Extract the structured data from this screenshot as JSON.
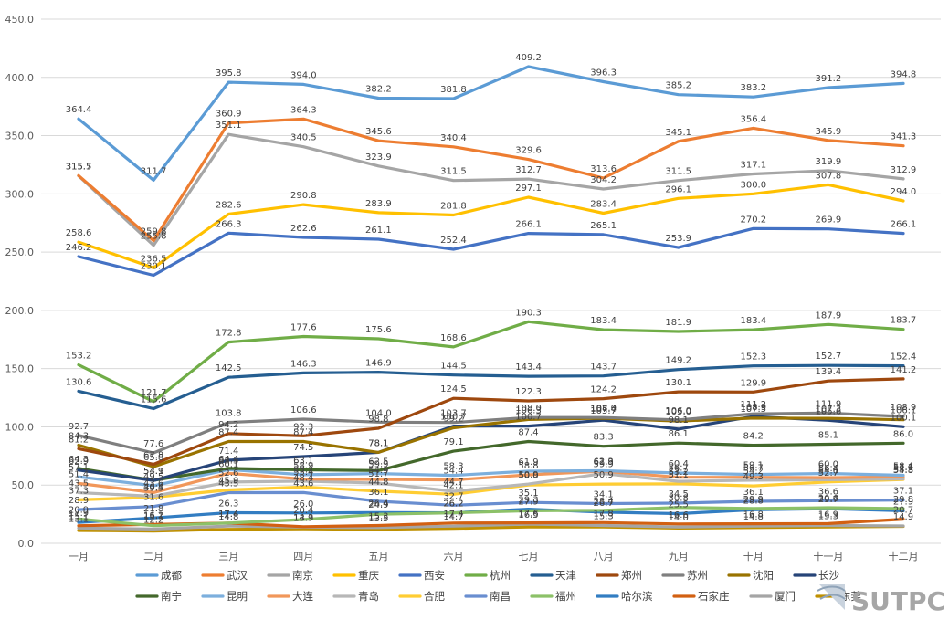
{
  "chart_data": {
    "type": "line",
    "categories": [
      "一月",
      "二月",
      "三月",
      "四月",
      "五月",
      "六月",
      "七月",
      "八月",
      "九月",
      "十月",
      "十一月",
      "十二月"
    ],
    "ylim": [
      0,
      450
    ],
    "yticks": [
      "0.0",
      "50.0",
      "100.0",
      "150.0",
      "200.0",
      "250.0",
      "300.0",
      "350.0",
      "400.0",
      "450.0"
    ],
    "grid": true,
    "legend_position": "bottom",
    "series": [
      {
        "name": "成都",
        "color": "#5b9bd5",
        "labeled": true,
        "values": [
          364.4,
          311.7,
          395.8,
          394.0,
          382.2,
          381.8,
          409.2,
          396.3,
          385.2,
          383.2,
          391.2,
          394.8
        ]
      },
      {
        "name": "武汉",
        "color": "#ed7d31",
        "labeled": true,
        "values": [
          315.7,
          259.8,
          360.9,
          364.3,
          345.6,
          340.4,
          329.6,
          313.6,
          345.1,
          356.4,
          345.9,
          341.3
        ]
      },
      {
        "name": "南京",
        "color": "#a5a5a5",
        "labeled": true,
        "values": [
          315.5,
          255.8,
          351.1,
          340.5,
          323.9,
          311.5,
          312.7,
          304.2,
          311.5,
          317.1,
          319.9,
          312.9
        ]
      },
      {
        "name": "重庆",
        "color": "#ffc000",
        "labeled": true,
        "values": [
          258.6,
          236.5,
          282.6,
          290.8,
          283.9,
          281.8,
          297.1,
          283.4,
          296.1,
          300.0,
          307.8,
          294.0
        ]
      },
      {
        "name": "西安",
        "color": "#4472c4",
        "labeled": true,
        "values": [
          246.2,
          230.1,
          266.3,
          262.6,
          261.1,
          252.4,
          266.1,
          265.1,
          253.9,
          270.2,
          269.9,
          266.1
        ]
      },
      {
        "name": "杭州",
        "color": "#70ad47",
        "labeled": true,
        "values": [
          153.2,
          121.7,
          172.8,
          177.6,
          175.6,
          168.6,
          190.3,
          183.4,
          181.9,
          183.4,
          187.9,
          183.7
        ]
      },
      {
        "name": "天津",
        "color": "#255e91",
        "labeled": true,
        "values": [
          130.6,
          115.6,
          142.5,
          146.3,
          146.9,
          144.5,
          143.4,
          143.7,
          149.2,
          152.3,
          152.7,
          152.4
        ]
      },
      {
        "name": "郑州",
        "color": "#9e480e",
        "labeled": true,
        "values": [
          81.2,
          67.8,
          94.2,
          92.3,
          98.8,
          124.5,
          122.3,
          124.2,
          130.1,
          129.9,
          139.4,
          141.2
        ]
      },
      {
        "name": "苏州",
        "color": "#7f7f7f",
        "labeled": true,
        "values": [
          92.7,
          77.6,
          103.8,
          106.6,
          104.0,
          103.7,
          108.0,
          108.0,
          106.0,
          111.2,
          111.9,
          108.9
        ]
      },
      {
        "name": "沈阳",
        "color": "#997300",
        "labeled": true,
        "values": [
          84.3,
          65.8,
          87.4,
          87.4,
          78.1,
          99.2,
          106.3,
          107.4,
          105.0,
          107.5,
          107.3,
          106.1
        ]
      },
      {
        "name": "长沙",
        "color": "#264478",
        "labeled": true,
        "values": [
          62.9,
          53.9,
          71.4,
          74.5,
          78.1,
          100.7,
          100.7,
          105.7,
          98.1,
          108.9,
          105.6,
          100.1
        ]
      },
      {
        "name": "南宁",
        "color": "#43682b",
        "labeled": true,
        "values": [
          64.3,
          54.1,
          64.4,
          63.1,
          62.5,
          79.1,
          87.4,
          83.3,
          86.1,
          84.2,
          85.1,
          86.0
        ]
      },
      {
        "name": "昆明",
        "color": "#7cafdd",
        "labeled": true,
        "values": [
          57.1,
          49.5,
          63.3,
          58.9,
          59.9,
          58.3,
          61.9,
          62.3,
          60.4,
          59.1,
          60.0,
          58.4
        ]
      },
      {
        "name": "大连",
        "color": "#f1975a",
        "labeled": true,
        "values": [
          51.4,
          43.6,
          60.1,
          55.1,
          54.9,
          54.4,
          58.8,
          61.9,
          56.7,
          56.7,
          56.4,
          57.1
        ]
      },
      {
        "name": "青岛",
        "color": "#b7b7b7",
        "labeled": true,
        "values": [
          43.5,
          40.4,
          52.6,
          53.4,
          51.7,
          44.7,
          50.9,
          59.9,
          53.2,
          54.2,
          54.6,
          55.3
        ]
      },
      {
        "name": "合肥",
        "color": "#ffcd33",
        "labeled": true,
        "values": [
          37.3,
          39.5,
          45.9,
          48.4,
          44.8,
          42.1,
          50.0,
          50.9,
          51.1,
          49.3,
          52.7,
          54.8
        ]
      },
      {
        "name": "南昌",
        "color": "#698ed0",
        "labeled": true,
        "values": [
          28.9,
          31.6,
          43.5,
          43.6,
          36.1,
          32.7,
          35.1,
          34.1,
          34.5,
          36.1,
          36.6,
          37.1
        ]
      },
      {
        "name": "福州",
        "color": "#8cc168",
        "labeled": true,
        "values": [
          20.9,
          15.1,
          17.4,
          20.4,
          24.9,
          26.2,
          27.9,
          28.4,
          30.8,
          29.9,
          30.6,
          29.8
        ]
      },
      {
        "name": "哈尔滨",
        "color": "#327dc2",
        "labeled": true,
        "values": [
          17.9,
          21.8,
          26.3,
          26.0,
          26.4,
          26.2,
          29.3,
          26.7,
          25.5,
          28.8,
          29.7,
          27.9
        ]
      },
      {
        "name": "石家庄",
        "color": "#d26012",
        "labeled": true,
        "values": [
          15.1,
          16.2,
          17.4,
          14.3,
          15.3,
          17.4,
          17.6,
          17.8,
          16.6,
          16.8,
          16.9,
          20.7
        ]
      },
      {
        "name": "厦门",
        "color": "#a5a5a5",
        "labeled": true,
        "values": [
          13.1,
          12.2,
          14.8,
          13.9,
          13.5,
          14.7,
          16.5,
          15.3,
          14.0,
          14.8,
          15.3,
          14.9
        ]
      },
      {
        "name": "东莞",
        "color": "#bf9000",
        "labeled": false,
        "values": [
          11.0,
          10.5,
          12.0,
          12.5,
          12.0,
          12.8,
          14.0,
          14.0,
          13.0,
          13.5,
          14.0,
          14.5
        ]
      }
    ]
  },
  "watermark": {
    "text": "SUTPC"
  }
}
